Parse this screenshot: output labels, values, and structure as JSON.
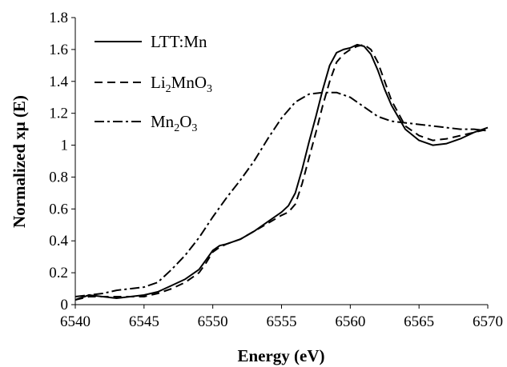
{
  "chart_data": {
    "type": "line",
    "xlabel": "Energy (eV)",
    "ylabel": "Normalized xμ (E)",
    "xlim": [
      6540,
      6570
    ],
    "ylim": [
      0,
      1.8
    ],
    "x_ticks": [
      "6540",
      "6545",
      "6550",
      "6555",
      "6560",
      "6565",
      "6570"
    ],
    "y_ticks": [
      "0",
      "0.2",
      "0.4",
      "0.6",
      "0.8",
      "1",
      "1.2",
      "1.4",
      "1.6",
      "1.8"
    ],
    "grid": false,
    "legend_position": "top-left",
    "series": [
      {
        "name": "LTT:Mn",
        "legend_main": "LTT:Mn",
        "legend_sub1": "",
        "legend_mid": "",
        "legend_sub2": "",
        "dash": "",
        "x": [
          6540,
          6541,
          6542,
          6543,
          6544,
          6545,
          6546,
          6547,
          6548,
          6549,
          6549.5,
          6550,
          6550.5,
          6551,
          6552,
          6553,
          6554,
          6555,
          6555.5,
          6556,
          6556.5,
          6557,
          6557.5,
          6558,
          6558.5,
          6559,
          6559.5,
          6560,
          6560.5,
          6561,
          6561.5,
          6562,
          6562.5,
          6563,
          6564,
          6565,
          6566,
          6567,
          6568,
          6569,
          6570
        ],
        "y": [
          0.03,
          0.06,
          0.05,
          0.04,
          0.05,
          0.06,
          0.08,
          0.12,
          0.16,
          0.22,
          0.28,
          0.34,
          0.37,
          0.38,
          0.41,
          0.46,
          0.52,
          0.58,
          0.62,
          0.7,
          0.85,
          1.02,
          1.18,
          1.35,
          1.5,
          1.58,
          1.6,
          1.61,
          1.63,
          1.62,
          1.57,
          1.47,
          1.35,
          1.25,
          1.1,
          1.03,
          1.0,
          1.01,
          1.04,
          1.08,
          1.11
        ]
      },
      {
        "name": "Li2MnO3",
        "legend_main": "Li",
        "legend_sub1": "2",
        "legend_mid": "MnO",
        "legend_sub2": "3",
        "dash": "10,6",
        "x": [
          6540,
          6541,
          6542,
          6543,
          6544,
          6545,
          6546,
          6547,
          6548,
          6549,
          6549.5,
          6550,
          6550.5,
          6551,
          6552,
          6553,
          6554,
          6555,
          6555.5,
          6556,
          6556.5,
          6557,
          6557.5,
          6558,
          6558.5,
          6559,
          6559.5,
          6560,
          6560.5,
          6561,
          6561.5,
          6562,
          6562.5,
          6563,
          6564,
          6565,
          6566,
          6567,
          6568,
          6569,
          6570
        ],
        "y": [
          0.03,
          0.05,
          0.05,
          0.05,
          0.05,
          0.05,
          0.07,
          0.1,
          0.14,
          0.2,
          0.26,
          0.33,
          0.36,
          0.38,
          0.41,
          0.46,
          0.51,
          0.56,
          0.58,
          0.63,
          0.76,
          0.92,
          1.08,
          1.25,
          1.4,
          1.52,
          1.57,
          1.6,
          1.62,
          1.63,
          1.6,
          1.52,
          1.4,
          1.28,
          1.12,
          1.06,
          1.03,
          1.04,
          1.06,
          1.08,
          1.1
        ]
      },
      {
        "name": "Mn2O3",
        "legend_main": "Mn",
        "legend_sub1": "2",
        "legend_mid": "O",
        "legend_sub2": "3",
        "dash": "12,4,3,4",
        "x": [
          6540,
          6541,
          6542,
          6543,
          6544,
          6545,
          6546,
          6547,
          6548,
          6549,
          6550,
          6551,
          6552,
          6553,
          6554,
          6555,
          6556,
          6557,
          6558,
          6559,
          6560,
          6561,
          6562,
          6563,
          6564,
          6565,
          6566,
          6567,
          6568,
          6569,
          6570
        ],
        "y": [
          0.05,
          0.06,
          0.07,
          0.09,
          0.1,
          0.11,
          0.14,
          0.22,
          0.31,
          0.42,
          0.55,
          0.67,
          0.78,
          0.9,
          1.04,
          1.17,
          1.27,
          1.32,
          1.33,
          1.33,
          1.3,
          1.24,
          1.18,
          1.15,
          1.14,
          1.13,
          1.12,
          1.11,
          1.1,
          1.1,
          1.09
        ]
      }
    ]
  }
}
